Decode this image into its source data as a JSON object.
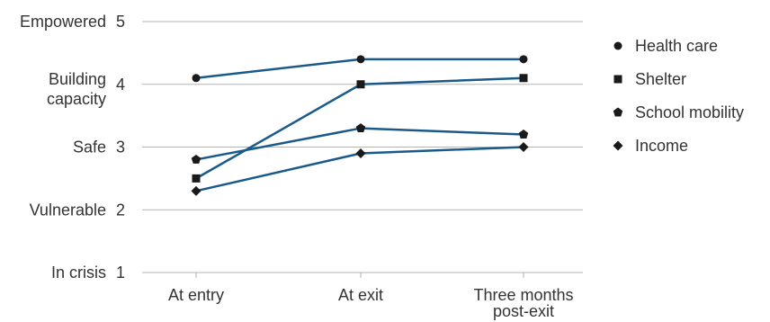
{
  "chart_data": {
    "type": "line",
    "categories": [
      "At entry",
      "At exit",
      "Three months post-exit"
    ],
    "y_ticks": [
      {
        "value": 1,
        "label": "In crisis",
        "number": "1"
      },
      {
        "value": 2,
        "label": "Vulnerable",
        "number": "2"
      },
      {
        "value": 3,
        "label": "Safe",
        "number": "3"
      },
      {
        "value": 4,
        "label": "Building capacity",
        "number": "4"
      },
      {
        "value": 5,
        "label": "Empowered",
        "number": "5"
      }
    ],
    "ylim": [
      1,
      5
    ],
    "grid": true,
    "legend_position": "right",
    "line_color": "#1a5a8a",
    "marker_color": "#1a1a1a",
    "series": [
      {
        "name": "Health care",
        "marker": "circle",
        "values": [
          4.1,
          4.4,
          4.4
        ]
      },
      {
        "name": "Shelter",
        "marker": "square",
        "values": [
          2.5,
          4.0,
          4.1
        ]
      },
      {
        "name": "School mobility",
        "marker": "pentagon",
        "values": [
          2.8,
          3.3,
          3.2
        ]
      },
      {
        "name": "Income",
        "marker": "diamond",
        "values": [
          2.3,
          2.9,
          3.0
        ]
      }
    ]
  }
}
